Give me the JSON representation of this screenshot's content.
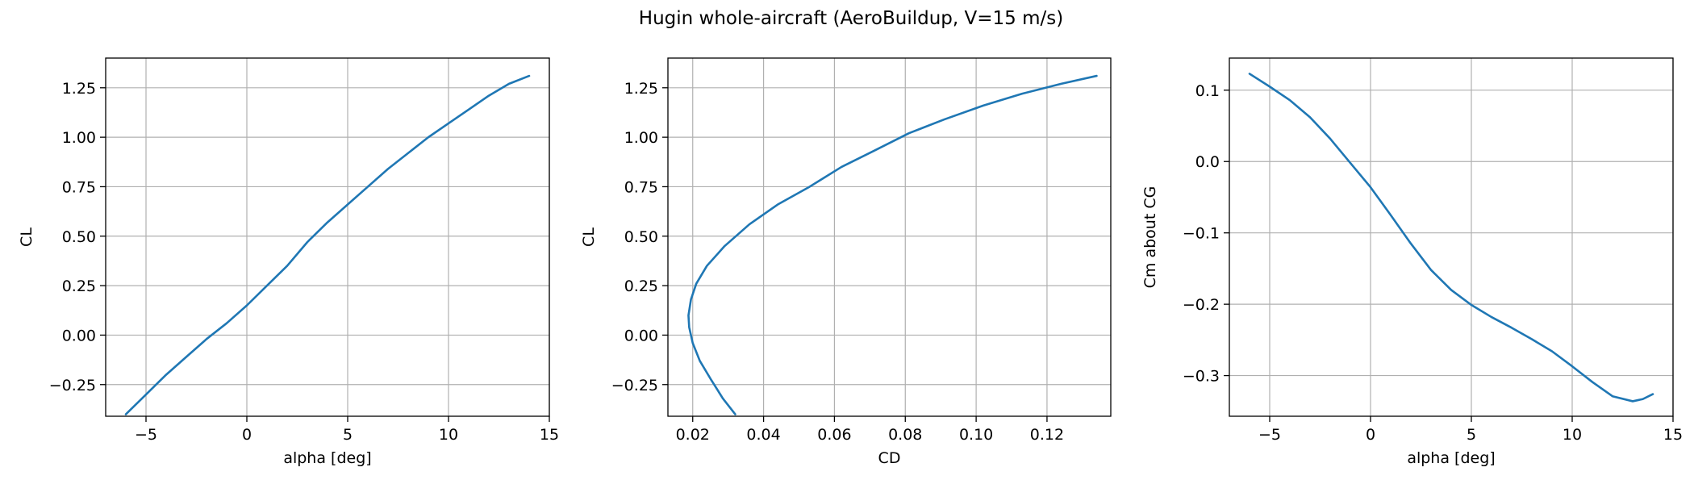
{
  "figure": {
    "title": "Hugin whole-aircraft (AeroBuildup, V=15 m/s)"
  },
  "colors": {
    "series": "#1f77b4",
    "grid": "#b0b0b0",
    "axes": "#000000"
  },
  "chart_data": [
    {
      "type": "line",
      "title": "",
      "xlabel": "alpha [deg]",
      "ylabel": "CL",
      "xlim": [
        -7,
        15
      ],
      "ylim": [
        -0.41,
        1.4
      ],
      "grid": true,
      "xticks": [
        -5,
        0,
        5,
        10,
        15
      ],
      "xtick_labels": [
        "−5",
        "0",
        "5",
        "10",
        "15"
      ],
      "yticks": [
        -0.25,
        0.0,
        0.25,
        0.5,
        0.75,
        1.0,
        1.25
      ],
      "ytick_labels": [
        "−0.25",
        "0.00",
        "0.25",
        "0.50",
        "0.75",
        "1.00",
        "1.25"
      ],
      "series": [
        {
          "x": [
            -6,
            -5,
            -4,
            -3,
            -2,
            -1,
            0,
            1,
            2,
            3,
            4,
            5,
            6,
            7,
            8,
            9,
            10,
            11,
            12,
            13,
            14
          ],
          "y": [
            -0.4,
            -0.3,
            -0.2,
            -0.11,
            -0.02,
            0.06,
            0.15,
            0.25,
            0.35,
            0.47,
            0.57,
            0.66,
            0.75,
            0.84,
            0.92,
            1.0,
            1.07,
            1.14,
            1.21,
            1.27,
            1.31
          ]
        }
      ]
    },
    {
      "type": "line",
      "title": "",
      "xlabel": "CD",
      "ylabel": "CL",
      "xlim": [
        0.013,
        0.138
      ],
      "ylim": [
        -0.41,
        1.4
      ],
      "grid": true,
      "xticks": [
        0.02,
        0.04,
        0.06,
        0.08,
        0.1,
        0.12
      ],
      "xtick_labels": [
        "0.02",
        "0.04",
        "0.06",
        "0.08",
        "0.10",
        "0.12"
      ],
      "yticks": [
        -0.25,
        0.0,
        0.25,
        0.5,
        0.75,
        1.0,
        1.25
      ],
      "ytick_labels": [
        "−0.25",
        "0.00",
        "0.25",
        "0.50",
        "0.75",
        "1.00",
        "1.25"
      ],
      "series": [
        {
          "x": [
            0.032,
            0.0285,
            0.025,
            0.022,
            0.02,
            0.019,
            0.0188,
            0.0195,
            0.021,
            0.024,
            0.029,
            0.036,
            0.044,
            0.053,
            0.062,
            0.071,
            0.081,
            0.091,
            0.102,
            0.113,
            0.124,
            0.134
          ],
          "y": [
            -0.4,
            -0.32,
            -0.22,
            -0.13,
            -0.04,
            0.04,
            0.1,
            0.18,
            0.26,
            0.35,
            0.45,
            0.56,
            0.66,
            0.75,
            0.85,
            0.93,
            1.02,
            1.09,
            1.16,
            1.22,
            1.27,
            1.31
          ]
        }
      ]
    },
    {
      "type": "line",
      "title": "",
      "xlabel": "alpha [deg]",
      "ylabel": "Cm about CG",
      "xlim": [
        -7,
        15
      ],
      "ylim": [
        -0.357,
        0.145
      ],
      "grid": true,
      "xticks": [
        -5,
        0,
        5,
        10,
        15
      ],
      "xtick_labels": [
        "−5",
        "0",
        "5",
        "10",
        "15"
      ],
      "yticks": [
        -0.3,
        -0.2,
        -0.1,
        0.0,
        0.1
      ],
      "ytick_labels": [
        "−0.3",
        "−0.2",
        "−0.1",
        "0.0",
        "0.1"
      ],
      "series": [
        {
          "x": [
            -6,
            -5,
            -4,
            -3,
            -2,
            -1,
            0,
            1,
            2,
            3,
            4,
            5,
            6,
            7,
            8,
            9,
            10,
            11,
            12,
            13,
            13.5,
            14
          ],
          "y": [
            0.123,
            0.105,
            0.086,
            0.062,
            0.032,
            -0.002,
            -0.036,
            -0.075,
            -0.115,
            -0.152,
            -0.18,
            -0.201,
            -0.218,
            -0.233,
            -0.249,
            -0.266,
            -0.287,
            -0.309,
            -0.329,
            -0.336,
            -0.333,
            -0.326
          ]
        }
      ]
    }
  ]
}
